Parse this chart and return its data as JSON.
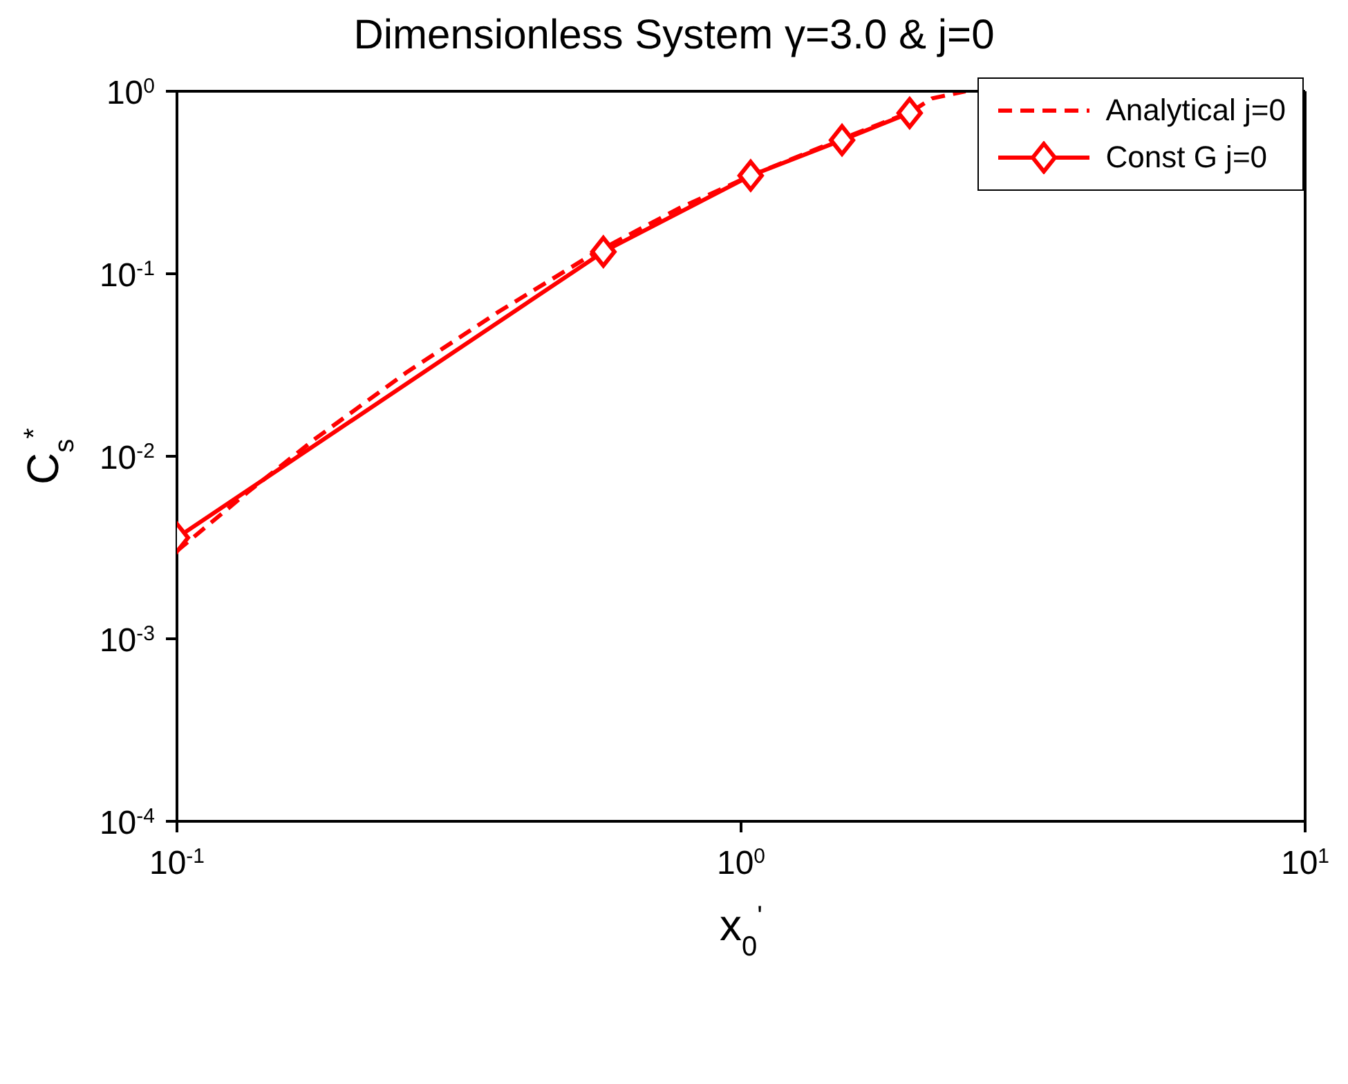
{
  "chart_data": {
    "type": "line",
    "title": "Dimensionless System γ=3.0 & j=0",
    "xlabel": "x$_{0}$$^{'}$",
    "ylabel": "C$_{s}$$^{*}$",
    "log": "xy",
    "xlim": [
      0.1,
      10
    ],
    "ylim": [
      0.0001,
      1
    ],
    "xticks": [
      {
        "value": 0.1,
        "label": "10$^{-1}$"
      },
      {
        "value": 1,
        "label": "10$^{0}$"
      },
      {
        "value": 10,
        "label": "10$^{1}$"
      }
    ],
    "yticks": [
      {
        "value": 0.0001,
        "label": "10$^{-4}$"
      },
      {
        "value": 0.001,
        "label": "10$^{-3}$"
      },
      {
        "value": 0.01,
        "label": "10$^{-2}$"
      },
      {
        "value": 0.1,
        "label": "10$^{-1}$"
      },
      {
        "value": 1,
        "label": "10$^{0}$"
      }
    ],
    "legend": "top right",
    "series": [
      {
        "name": "Analytical j=0",
        "color": "#ff0000",
        "line_style": "dashed",
        "marker": "none",
        "x": [
          0.1,
          0.133,
          0.176,
          0.256,
          0.372,
          0.55,
          0.78,
          1.04,
          1.5,
          2.0,
          2.18,
          2.5
        ],
        "values": [
          0.00303,
          0.0063,
          0.0125,
          0.029,
          0.062,
          0.13,
          0.23,
          0.345,
          0.545,
          0.77,
          0.914,
          1.0
        ]
      },
      {
        "name": "Const G j=0",
        "color": "#ff0000",
        "line_style": "solid",
        "marker": "diamond",
        "x": [
          0.1,
          0.57,
          1.04,
          1.51,
          1.99
        ],
        "values": [
          0.00358,
          0.132,
          0.345,
          0.54,
          0.76
        ]
      }
    ]
  }
}
